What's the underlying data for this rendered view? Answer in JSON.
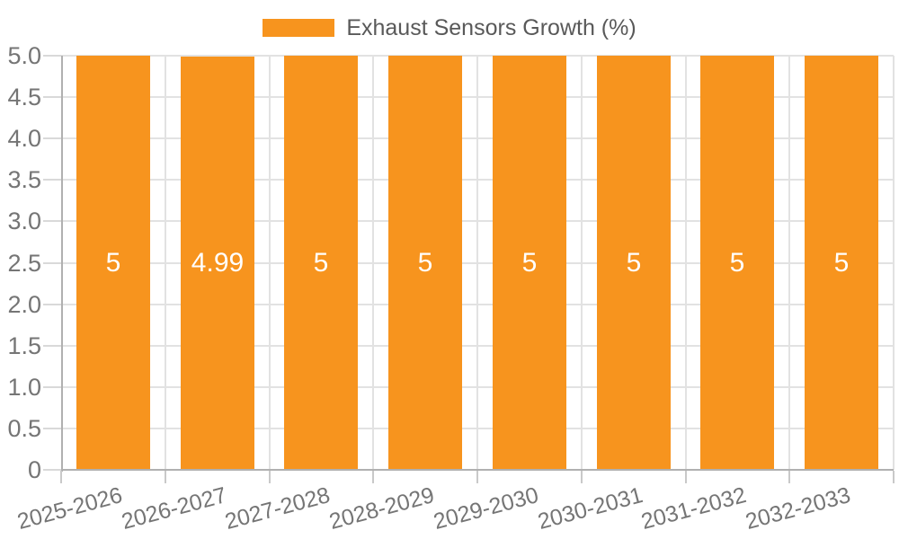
{
  "chart_data": {
    "type": "bar",
    "title": "",
    "legend": {
      "label": "Exhaust Sensors Growth (%)",
      "position": "top-center"
    },
    "categories": [
      "2025-2026",
      "2026-2027",
      "2027-2028",
      "2028-2029",
      "2029-2030",
      "2030-2031",
      "2031-2032",
      "2032-2033"
    ],
    "series": [
      {
        "name": "Exhaust Sensors Growth (%)",
        "color": "#F7941E",
        "values": [
          5,
          4.99,
          5,
          5,
          5,
          5,
          5,
          5
        ]
      }
    ],
    "bar_value_labels": [
      "5",
      "4.99",
      "5",
      "5",
      "5",
      "5",
      "5",
      "5"
    ],
    "xlabel": "",
    "ylabel": "",
    "ylim": [
      0,
      5
    ],
    "yticks": [
      0,
      0.5,
      1,
      1.5,
      2,
      2.5,
      3,
      3.5,
      4,
      4.5,
      5
    ],
    "ytick_labels": [
      "0",
      "0.5",
      "1.0",
      "1.5",
      "2.0",
      "2.5",
      "3.0",
      "3.5",
      "4.0",
      "4.5",
      "5.0"
    ],
    "grid": true,
    "colors": {
      "bar": "#F7941E",
      "bar_label_text": "#FFFFFF",
      "gridline": "#E2E2E2",
      "axis_line": "#B0B0B0",
      "y_tick_line": "#D9D9D9",
      "x_tick_line": "#C9C9C9",
      "axis_label_text": "#757575",
      "legend_text": "#595959",
      "background": "#FFFFFF"
    }
  }
}
